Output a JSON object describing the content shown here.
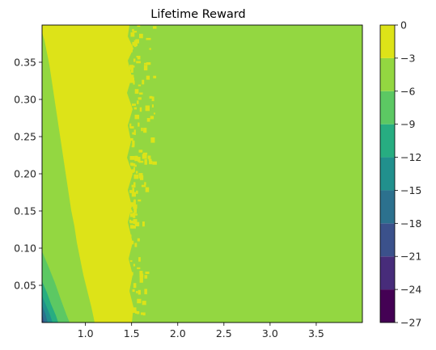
{
  "chart_data": {
    "type": "heatmap",
    "subtype": "filled-contour",
    "title": "Lifetime Reward",
    "xlabel": "",
    "ylabel": "",
    "xlim": [
      0.53,
      4.0
    ],
    "ylim": [
      0.0,
      0.4
    ],
    "x_ticks": [
      1.0,
      1.5,
      2.0,
      2.5,
      3.0,
      3.5
    ],
    "x_tick_labels": [
      "1.0",
      "1.5",
      "2.0",
      "2.5",
      "3.0",
      "3.5"
    ],
    "y_ticks": [
      0.05,
      0.1,
      0.15,
      0.2,
      0.25,
      0.3,
      0.35
    ],
    "y_tick_labels": [
      "0.05",
      "0.10",
      "0.15",
      "0.20",
      "0.25",
      "0.30",
      "0.35"
    ],
    "grid": false,
    "colorbar": {
      "levels": [
        -27,
        -24,
        -21,
        -18,
        -15,
        -12,
        -9,
        -6,
        -3,
        0
      ],
      "tick_labels": [
        "−27",
        "−24",
        "−21",
        "−18",
        "−15",
        "−12",
        "−9",
        "−6",
        "−3",
        "0"
      ],
      "colors": [
        "#440154",
        "#472c7a",
        "#3b518b",
        "#2c718e",
        "#21908d",
        "#27ad81",
        "#5cc863",
        "#93d741",
        "#dde318"
      ]
    },
    "regions": [
      {
        "level_range": [
          -3,
          0
        ],
        "color": "#dde318",
        "description": "high band: x from about 0.55 (top) / 0.85 (bottom) to about 1.5, with scattered patches up to x 1.9"
      },
      {
        "level_range": [
          -6,
          -3
        ],
        "color": "#93d741",
        "description": "background level for x > 1.5 and left strip x < 0.8"
      },
      {
        "level_range": [
          -9,
          -6
        ],
        "color": "#5cc863",
        "description": "bottom-left wedge, y < 0.09"
      },
      {
        "level_range": [
          -12,
          -9
        ],
        "color": "#27ad81",
        "description": "bottom-left corner, y < 0.04"
      },
      {
        "level_range": [
          -15,
          -12
        ],
        "color": "#21908d",
        "description": "bottom-left corner"
      },
      {
        "level_range": [
          -18,
          -15
        ],
        "color": "#2c718e",
        "description": "bottom-left corner"
      },
      {
        "level_range": [
          -21,
          -18
        ],
        "color": "#3b518b",
        "description": "bottom-left corner"
      }
    ]
  }
}
